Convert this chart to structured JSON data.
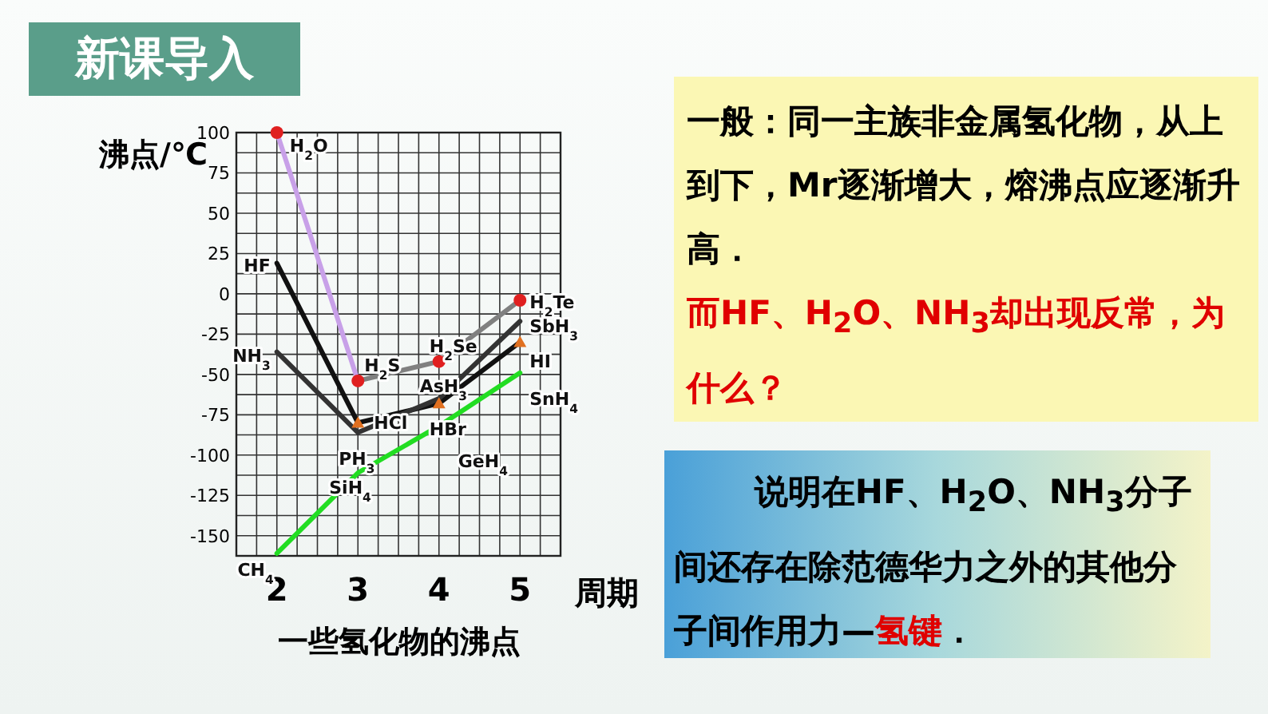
{
  "chart_data": {
    "type": "line",
    "title": "一些氢化物的沸点",
    "xlabel": "周期",
    "ylabel": "沸点/℃",
    "xlim": [
      1.5,
      5.5
    ],
    "xticks": [
      2,
      3,
      4,
      5
    ],
    "ylim": [
      -162.5,
      100
    ],
    "yticks": [
      100,
      75,
      50,
      25,
      0,
      -25,
      -50,
      -75,
      -100,
      -125,
      -150
    ],
    "grid": true,
    "series": [
      {
        "color": "#c8a0e8",
        "x": [
          2,
          3
        ],
        "values": [
          100,
          -54
        ]
      },
      {
        "color": "#808080",
        "x": [
          3,
          4,
          5
        ],
        "values": [
          -54,
          -42,
          -4
        ]
      },
      {
        "color": "#111111",
        "x": [
          2,
          3,
          4,
          5
        ],
        "values": [
          19,
          -80,
          -68,
          -30
        ]
      },
      {
        "color": "#333333",
        "x": [
          2,
          3,
          4,
          5
        ],
        "values": [
          -36,
          -86,
          -65,
          -17
        ]
      },
      {
        "color": "#22dd22",
        "x": [
          2,
          3,
          4,
          5
        ],
        "values": [
          -161,
          -111,
          -82,
          -49
        ]
      },
      {
        "type": "scatter",
        "marker": "circle",
        "color": "#e02020",
        "x": [
          2,
          3,
          4,
          5
        ],
        "values": [
          100,
          -54,
          -42,
          -4
        ]
      },
      {
        "type": "scatter",
        "marker": "triangle",
        "color": "#e07020",
        "x": [
          3,
          4,
          5
        ],
        "values": [
          -80,
          -68,
          -30
        ]
      }
    ],
    "annotations": [
      "新课导入",
      "一般：同一主族非金属氢化物，从上到下，Mr逐渐增大，熔沸点应逐渐升高．",
      "而HF、H$_{2}$O、NH$_{3}$却出现反常，为什么？",
      "说明在HF、H$_{2}$O、NH$_{3}$分子间还存在除范德华力之外的其他分子间作用力—",
      "氢键",
      "．",
      {
        "text": "H$_{2}$O",
        "x": 2,
        "y": 100
      },
      {
        "text": "H$_{2}$S",
        "x": 3,
        "y": -54
      },
      {
        "text": "H$_{2}$Se",
        "x": 4,
        "y": -42
      },
      {
        "text": "H$_{2}$Te",
        "x": 5,
        "y": -4
      },
      {
        "text": "HF",
        "x": 2,
        "y": 19
      },
      {
        "text": "HCl",
        "x": 3,
        "y": -80
      },
      {
        "text": "HBr",
        "x": 4,
        "y": -68
      },
      {
        "text": "HI",
        "x": 5,
        "y": -30
      },
      {
        "text": "NH$_{3}$",
        "x": 2,
        "y": -36
      },
      {
        "text": "PH$_{3}$",
        "x": 3,
        "y": -86
      },
      {
        "text": "AsH$_{3}$",
        "x": 4,
        "y": -65
      },
      {
        "text": "SbH$_{3}$",
        "x": 5,
        "y": -17
      },
      {
        "text": "CH$_{4}$",
        "x": 2,
        "y": -161
      },
      {
        "text": "SiH$_{4}$",
        "x": 3,
        "y": -111
      },
      {
        "text": "GeH$_{4}$",
        "x": 4,
        "y": -82
      },
      {
        "text": "SnH$_{4}$",
        "x": 5,
        "y": -49
      }
    ]
  }
}
